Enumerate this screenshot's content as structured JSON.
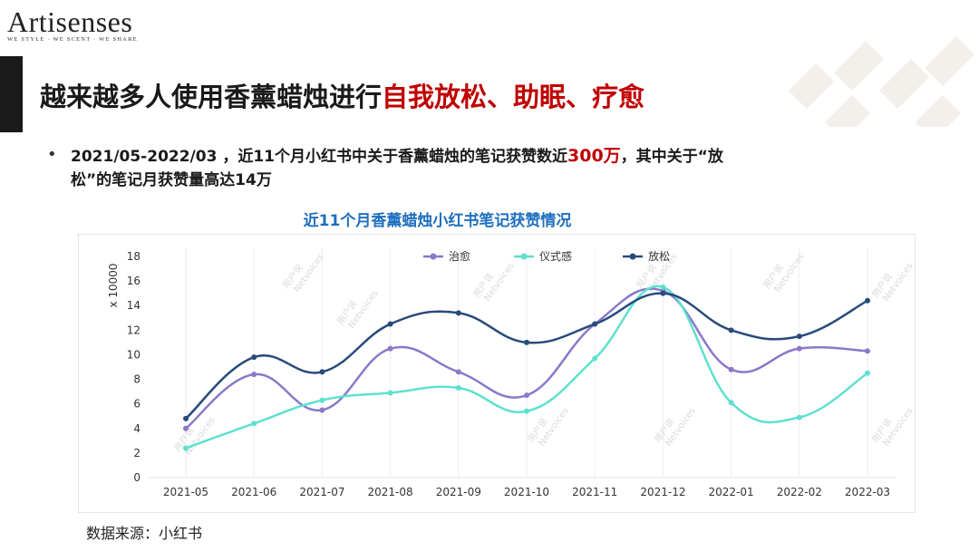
{
  "logo": {
    "name": "Artisenses",
    "tagline": "WE STYLE · WE SCENT · WE SHARE"
  },
  "title": {
    "prefix": "越来越多人使用香薰蜡烛进行",
    "highlight": "自我放松、助眠、疗愈"
  },
  "bullet": {
    "part1": "2021/05-2022/03 ，近11个月小红书中关于香薰蜡烛的笔记获赞数近",
    "highlight": "300万",
    "part2": "，其中关于“放松”的笔记月获赞量高达14万"
  },
  "chart_title": "近11个月香薰蜡烛小红书笔记获赞情况",
  "source": "数据来源：小红书",
  "colors": {
    "title_highlight": "#c00000",
    "chart_title": "#1f6fbf"
  },
  "chart_data": {
    "type": "line",
    "ylabel": "x 10000",
    "ylim": [
      0,
      18
    ],
    "yticks": [
      0,
      2,
      4,
      6,
      8,
      10,
      12,
      14,
      16,
      18
    ],
    "x": [
      "2021-05",
      "2021-06",
      "2021-07",
      "2021-08",
      "2021-09",
      "2021-10",
      "2021-11",
      "2021-12",
      "2022-01",
      "2022-02",
      "2022-03"
    ],
    "legend_position": "top",
    "watermark": [
      "用户说",
      "Netvoices"
    ],
    "series": [
      {
        "name": "治愈",
        "color": "#8b78c9",
        "values": [
          4.0,
          8.4,
          5.5,
          10.5,
          8.6,
          6.7,
          12.5,
          15.2,
          8.8,
          10.5,
          10.3
        ]
      },
      {
        "name": "仪式感",
        "color": "#5fe0cf",
        "values": [
          2.4,
          4.4,
          6.3,
          6.9,
          7.3,
          5.4,
          9.7,
          15.5,
          6.1,
          4.9,
          8.5
        ]
      },
      {
        "name": "放松",
        "color": "#274b7a",
        "values": [
          4.8,
          9.8,
          8.6,
          12.5,
          13.4,
          11.0,
          12.5,
          15.0,
          12.0,
          11.5,
          14.4
        ]
      }
    ]
  }
}
